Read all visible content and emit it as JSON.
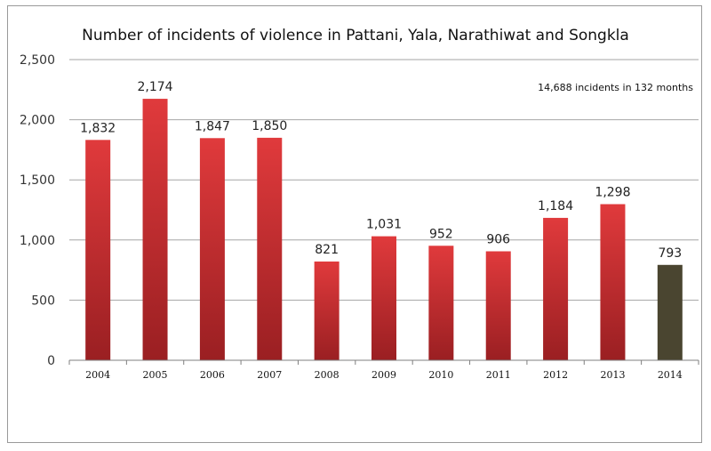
{
  "chart_data": {
    "type": "bar",
    "title": "Number of incidents of violence in Pattani, Yala, Narathiwat and Songkla",
    "annotation": "14,688 incidents in 132 months",
    "categories": [
      "2004",
      "2005",
      "2006",
      "2007",
      "2008",
      "2009",
      "2010",
      "2011",
      "2012",
      "2013",
      "2014"
    ],
    "values": [
      1832,
      2174,
      1847,
      1850,
      821,
      1031,
      952,
      906,
      1184,
      1298,
      793
    ],
    "data_labels": [
      "1,832",
      "2,174",
      "1,847",
      "1,850",
      "821",
      "1,031",
      "952",
      "906",
      "1,184",
      "1,298",
      "793"
    ],
    "yticks": [
      0,
      500,
      1000,
      1500,
      2000,
      2500
    ],
    "ytick_labels": [
      "0",
      "500",
      "1,000",
      "1,500",
      "2,000",
      "2,500"
    ],
    "ylim": [
      0,
      2500
    ],
    "grid": true,
    "xlabel": "",
    "ylabel": "",
    "colors": {
      "bar_gradient_top": "#e03a3c",
      "bar_gradient_bottom": "#9a1f22",
      "highlight_bar": "#4a4530",
      "grid": "#a6a6a6",
      "axis": "#7f7f7f"
    },
    "highlight_category": "2014"
  }
}
